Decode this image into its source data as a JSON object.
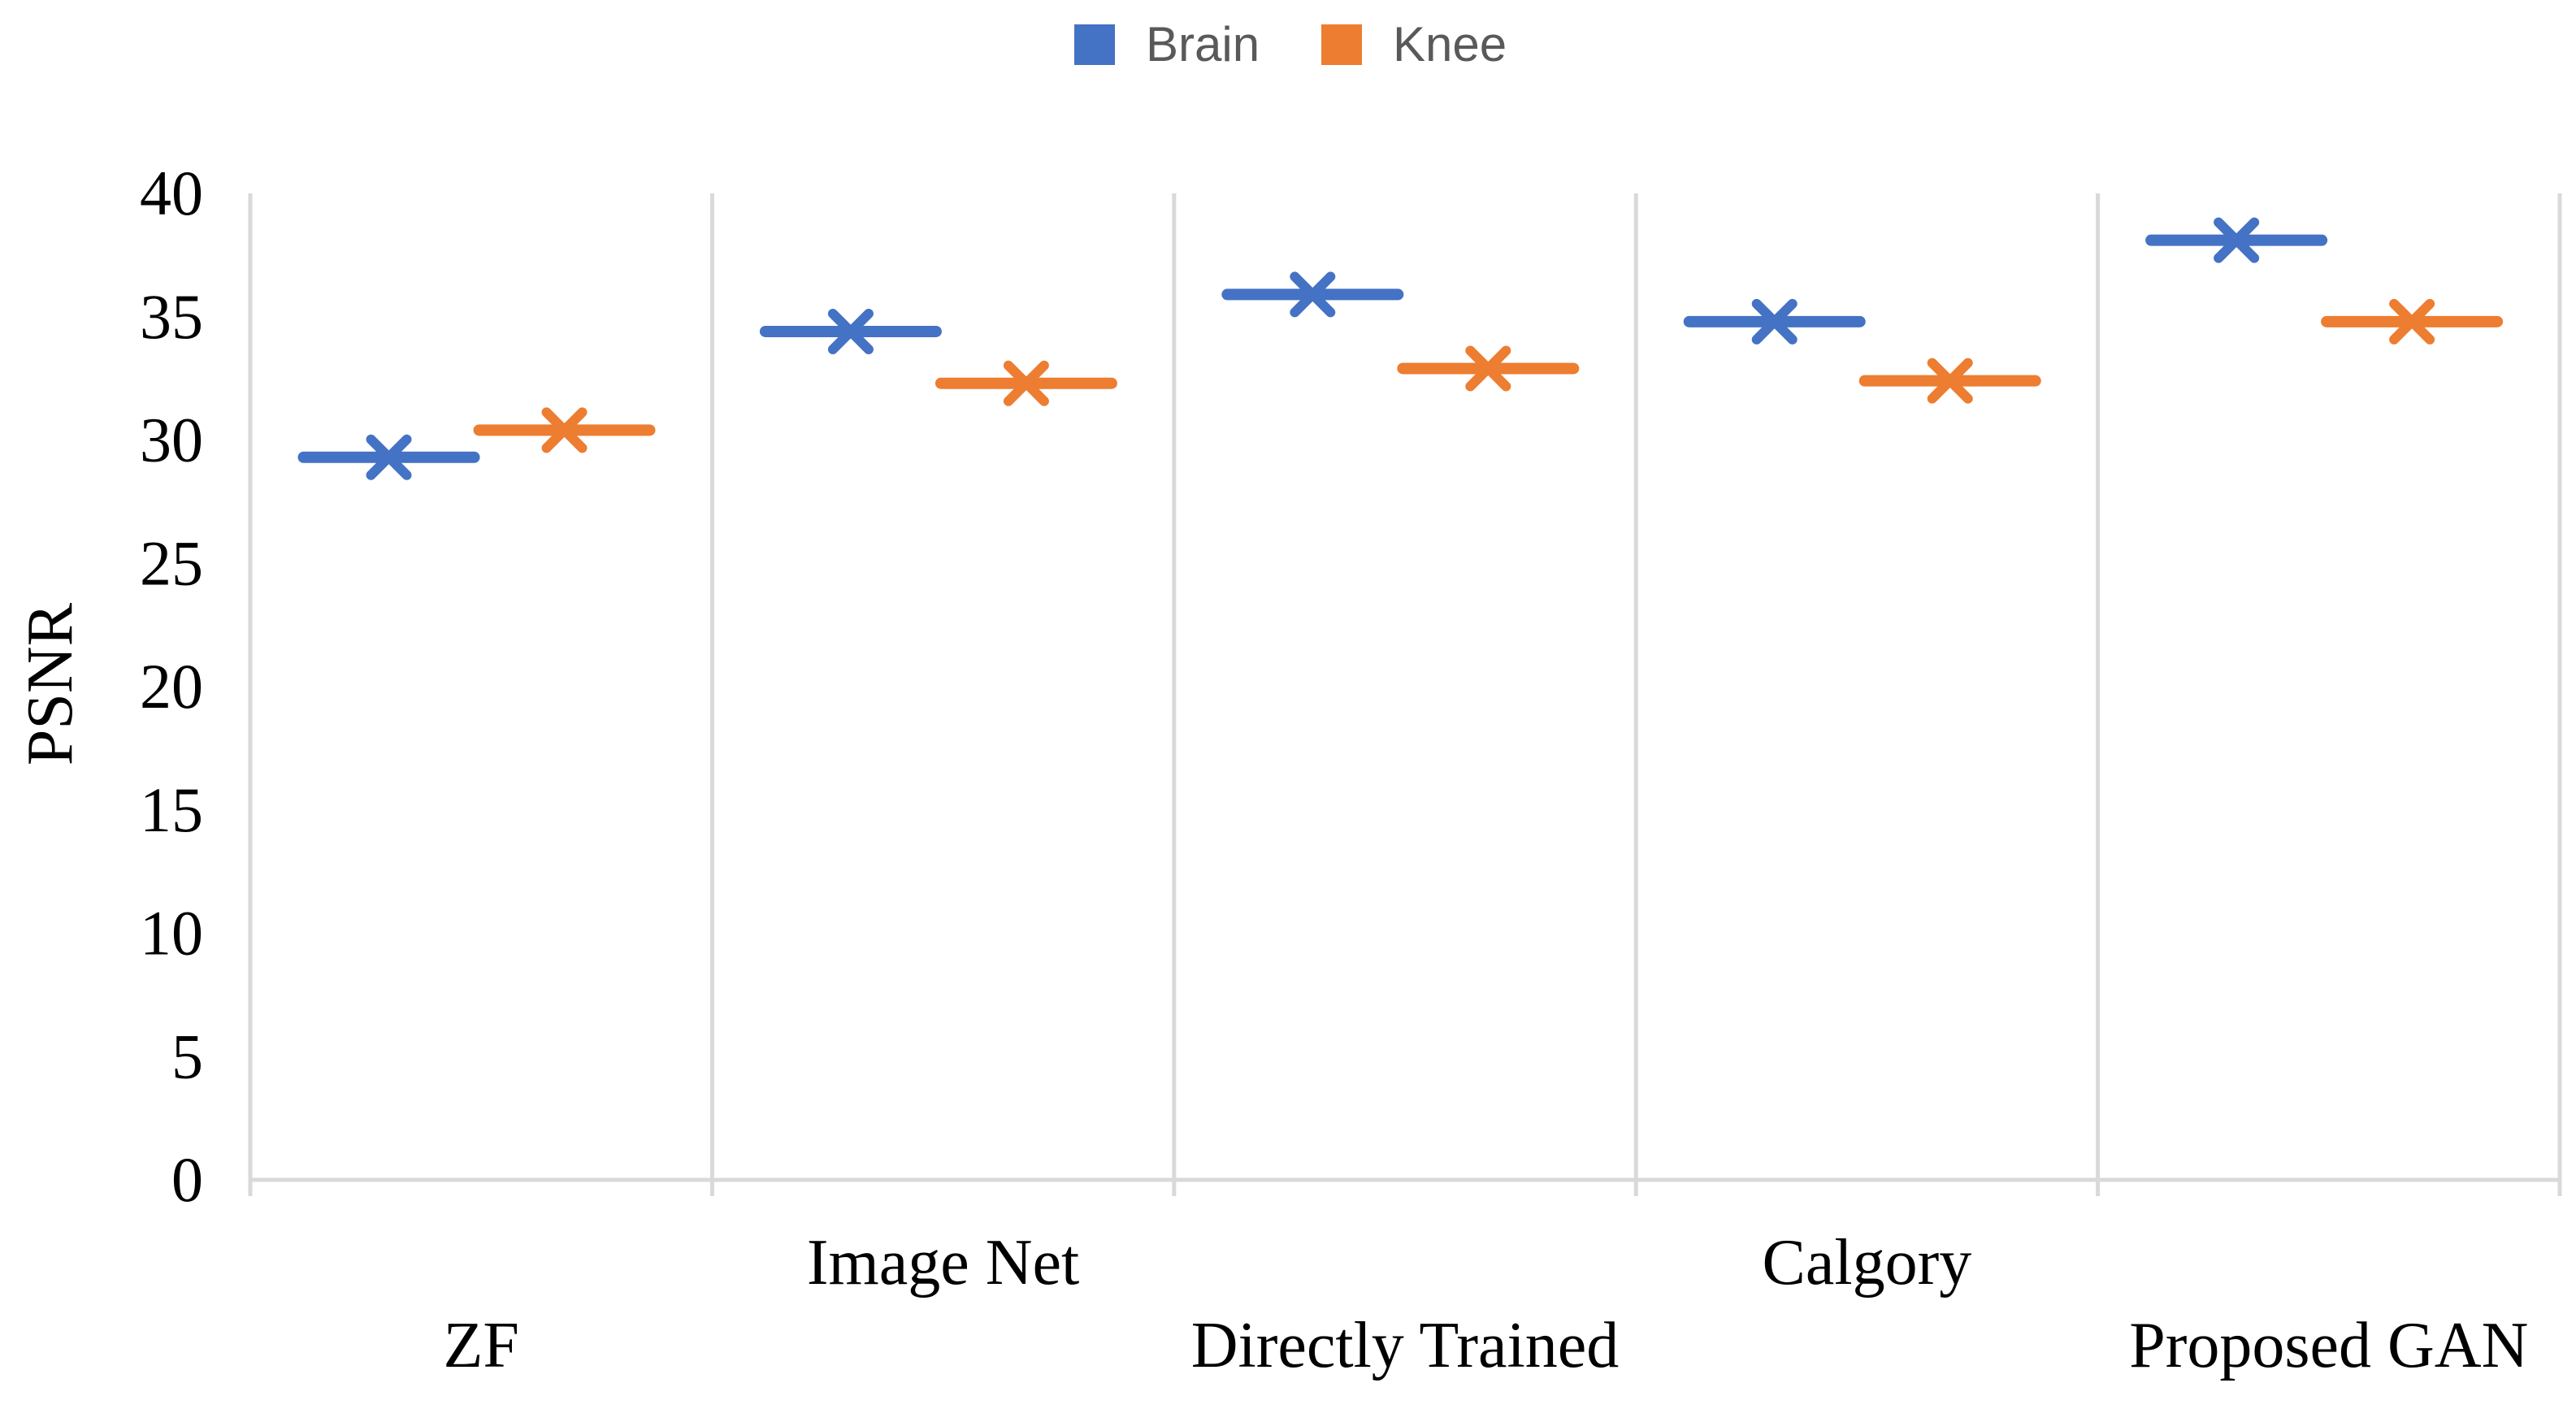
{
  "chart_data": {
    "type": "scatter",
    "ylabel": "PSNR",
    "xlabel": "",
    "ylim": [
      0,
      40
    ],
    "yticks": [
      0,
      5,
      10,
      15,
      20,
      25,
      30,
      35,
      40
    ],
    "grid": "vertical category separators",
    "legend_position": "top",
    "marker": "x-with-horizontal-dash",
    "categories": [
      "ZF",
      "Image Net",
      "Directly Trained",
      "Calgory",
      "Proposed GAN"
    ],
    "series": [
      {
        "name": "Brain",
        "color": "#4472C4",
        "values": [
          29.3,
          34.4,
          35.9,
          34.8,
          38.1
        ]
      },
      {
        "name": "Knee",
        "color": "#ED7D31",
        "values": [
          30.4,
          32.3,
          32.9,
          32.4,
          34.8
        ]
      }
    ]
  }
}
